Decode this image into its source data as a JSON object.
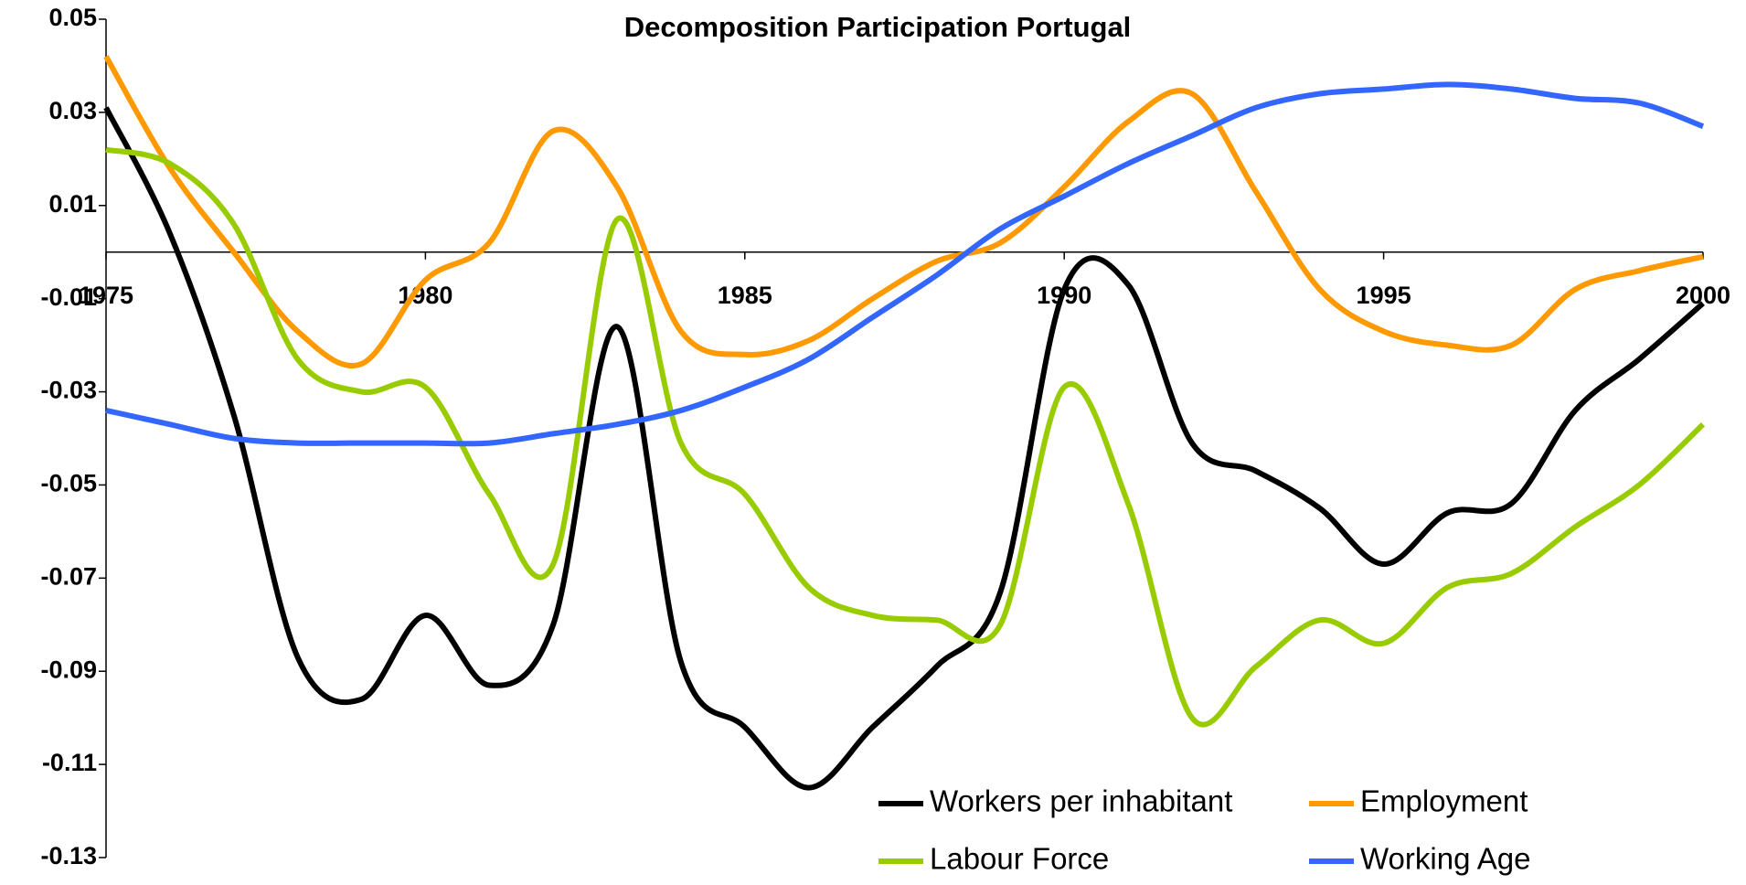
{
  "chart_data": {
    "type": "line",
    "title": "Decomposition Participation Portugal",
    "x": [
      1975,
      1976,
      1977,
      1978,
      1979,
      1980,
      1981,
      1982,
      1983,
      1984,
      1985,
      1986,
      1987,
      1988,
      1989,
      1990,
      1991,
      1992,
      1993,
      1994,
      1995,
      1996,
      1997,
      1998,
      1999,
      2000
    ],
    "series": [
      {
        "name": "Workers per inhabitant",
        "color": "#000000",
        "values": [
          0.031,
          0.004,
          -0.035,
          -0.087,
          -0.096,
          -0.078,
          -0.093,
          -0.08,
          -0.016,
          -0.088,
          -0.102,
          -0.115,
          -0.102,
          -0.089,
          -0.073,
          -0.008,
          -0.007,
          -0.041,
          -0.047,
          -0.055,
          -0.067,
          -0.056,
          -0.054,
          -0.034,
          -0.023,
          -0.011
        ]
      },
      {
        "name": "Employment",
        "color": "#ff9900",
        "values": [
          0.042,
          0.018,
          0.0,
          -0.017,
          -0.024,
          -0.006,
          0.002,
          0.026,
          0.014,
          -0.017,
          -0.022,
          -0.019,
          -0.01,
          -0.002,
          0.002,
          0.014,
          0.028,
          0.034,
          0.013,
          -0.008,
          -0.017,
          -0.02,
          -0.02,
          -0.008,
          -0.004,
          -0.001
        ]
      },
      {
        "name": "Labour Force",
        "color": "#99cc00",
        "values": [
          0.022,
          0.019,
          0.006,
          -0.023,
          -0.03,
          -0.029,
          -0.052,
          -0.067,
          0.007,
          -0.041,
          -0.052,
          -0.072,
          -0.078,
          -0.079,
          -0.08,
          -0.029,
          -0.054,
          -0.1,
          -0.089,
          -0.079,
          -0.084,
          -0.072,
          -0.069,
          -0.059,
          -0.05,
          -0.037
        ]
      },
      {
        "name": "Working Age",
        "color": "#3366ff",
        "values": [
          -0.034,
          -0.037,
          -0.04,
          -0.041,
          -0.041,
          -0.041,
          -0.041,
          -0.039,
          -0.037,
          -0.034,
          -0.029,
          -0.023,
          -0.014,
          -0.005,
          0.005,
          0.012,
          0.019,
          0.025,
          0.031,
          0.034,
          0.035,
          0.036,
          0.035,
          0.033,
          0.032,
          0.027
        ]
      }
    ],
    "xlim": [
      1975,
      2000
    ],
    "xticks": [
      1975,
      1980,
      1985,
      1990,
      1995,
      2000
    ],
    "ylim": [
      -0.13,
      0.05
    ],
    "yticks": [
      -0.13,
      -0.11,
      -0.09,
      -0.07,
      -0.05,
      -0.03,
      -0.01,
      0.01,
      0.03,
      0.05
    ],
    "grid": false
  }
}
